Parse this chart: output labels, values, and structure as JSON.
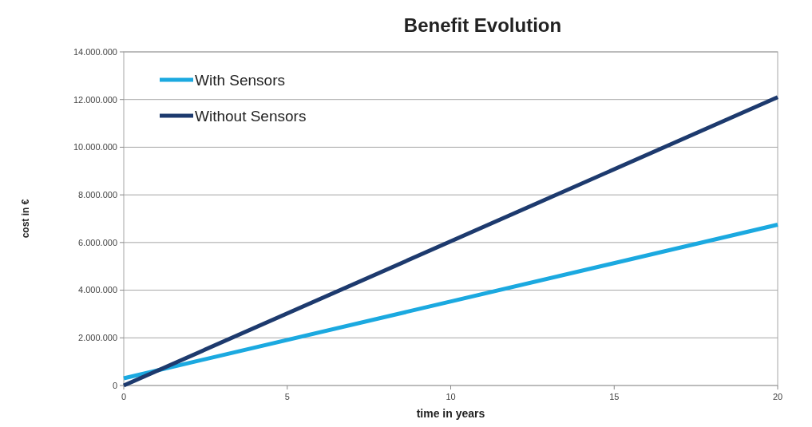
{
  "chart_data": {
    "type": "line",
    "title": "Benefit Evolution",
    "xlabel": "time in years",
    "ylabel": "cost in €",
    "x": [
      0,
      20
    ],
    "series": [
      {
        "name": "With Sensors",
        "color": "#1ba9e0",
        "values": [
          300000,
          6750000
        ]
      },
      {
        "name": "Without Sensors",
        "color": "#1d3a6e",
        "values": [
          0,
          12100000
        ]
      }
    ],
    "xlim": [
      0,
      20
    ],
    "xticks": [
      0,
      5,
      10,
      15,
      20
    ],
    "ylim": [
      0,
      14000000
    ],
    "yticks": [
      {
        "value": 0,
        "label": "0"
      },
      {
        "value": 2000000,
        "label": "2.000.000"
      },
      {
        "value": 4000000,
        "label": "4.000.000"
      },
      {
        "value": 6000000,
        "label": "6.000.000"
      },
      {
        "value": 8000000,
        "label": "8.000.000"
      },
      {
        "value": 10000000,
        "label": "10.000.000"
      },
      {
        "value": 12000000,
        "label": "12.000.000"
      },
      {
        "value": 14000000,
        "label": "14.000.000"
      }
    ],
    "grid": "y",
    "legend": "top left",
    "line_style": "solid",
    "marker": "none"
  }
}
